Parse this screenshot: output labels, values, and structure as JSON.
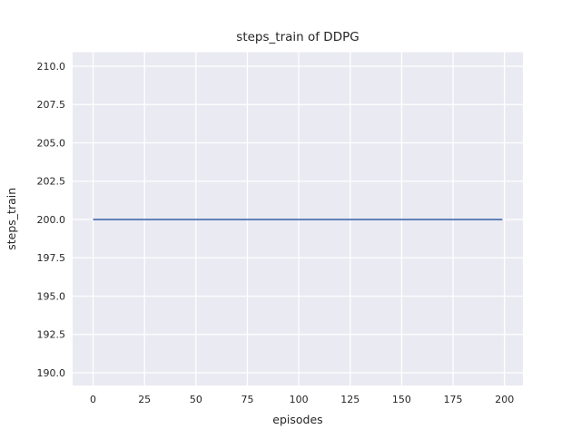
{
  "figure": {
    "title": "steps_train of DDPG",
    "xlabel": "episodes",
    "ylabel": "steps_train"
  },
  "chart_data": {
    "type": "line",
    "title": "steps_train of DDPG",
    "xlabel": "episodes",
    "ylabel": "steps_train",
    "series": [
      {
        "name": "steps_train",
        "x": [
          0,
          199
        ],
        "y": [
          200,
          200
        ],
        "color": "#4C72B0",
        "shape": "constant horizontal line at y=200 across all episodes"
      }
    ],
    "x_ticks": [
      0,
      25,
      50,
      75,
      100,
      125,
      150,
      175,
      200
    ],
    "y_ticks": [
      190.0,
      192.5,
      195.0,
      197.5,
      200.0,
      202.5,
      205.0,
      207.5,
      210.0
    ],
    "y_tick_labels": [
      "190.0",
      "192.5",
      "195.0",
      "197.5",
      "200.0",
      "202.5",
      "205.0",
      "207.5",
      "210.0"
    ],
    "x_tick_labels": [
      "0",
      "25",
      "50",
      "75",
      "100",
      "125",
      "150",
      "175",
      "200"
    ],
    "xlim": [
      -9.95,
      208.95
    ],
    "ylim": [
      189.17,
      210.91
    ],
    "grid": true,
    "legend": false,
    "style": {
      "fig_background": "#FFFFFF",
      "axes_background": "#EAEAF2",
      "grid_color": "#FFFFFF",
      "text_color": "#262626",
      "line_color": "#4C72B0"
    }
  }
}
